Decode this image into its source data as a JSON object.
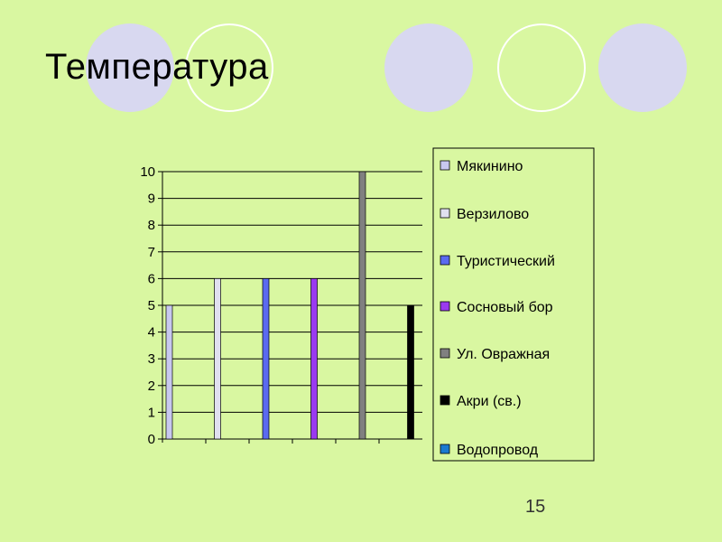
{
  "slide": {
    "title": "Температура",
    "page_number": "15"
  },
  "colors": {
    "background": "#d9f7a1",
    "decor_filled": "#d8d8f0",
    "decor_ring": "#ffffff"
  },
  "chart_data": {
    "type": "bar",
    "title": "",
    "xlabel": "",
    "ylabel": "",
    "ylim": [
      0,
      10
    ],
    "yticks": [
      0,
      1,
      2,
      3,
      4,
      5,
      6,
      7,
      8,
      9,
      10
    ],
    "grid": true,
    "legend_position": "right",
    "series": [
      {
        "name": "Мякинино",
        "value": 5,
        "color": "#c8c8f0"
      },
      {
        "name": "Верзилово",
        "value": 6,
        "color": "#e0e0f0"
      },
      {
        "name": "Туристический",
        "value": 6,
        "color": "#5a6af0"
      },
      {
        "name": "Сосновый бор",
        "value": 6,
        "color": "#9a3af0"
      },
      {
        "name": "Ул. Овражная",
        "value": 10,
        "color": "#808080"
      },
      {
        "name": "Акри (св.)",
        "value": 5,
        "color": "#000000"
      },
      {
        "name": "Водопровод",
        "value": null,
        "color": "#1a7ad0"
      }
    ]
  }
}
